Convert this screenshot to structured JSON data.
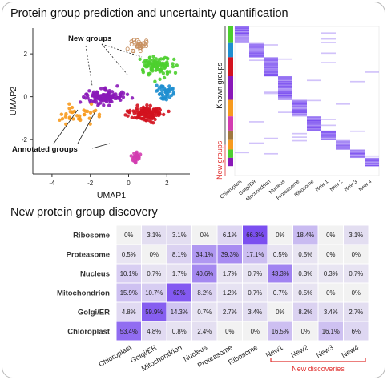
{
  "panel1": {
    "title": "Protein group prediction and uncertainty quantification"
  },
  "panel2": {
    "title": "New protein group discovery"
  },
  "colors": {
    "heat_low": "#ffffff",
    "heat_high": "#7b4ff0",
    "band_red": "#e0302f",
    "clusters": [
      "#4ccf2e",
      "#1f8fd0",
      "#d3121e",
      "#8a18b8",
      "#f79a1e",
      "#d33cb0",
      "#a07840",
      "#ff7a5a"
    ]
  },
  "chart_data": [
    {
      "type": "scatter",
      "xlabel": "UMAP1",
      "ylabel": "UMAP2",
      "xlim": [
        -5,
        3.2
      ],
      "ylim": [
        -3.6,
        3.2
      ],
      "x_ticks": [
        "-4",
        "-2",
        "0",
        "2"
      ],
      "y_ticks": [
        "-2",
        "0",
        "2"
      ],
      "annotations": [
        "New groups",
        "Annotated groups"
      ],
      "clusters": [
        {
          "color": "#4ccf2e",
          "center": [
            1.5,
            1.4
          ],
          "spread": [
            0.9,
            0.6
          ],
          "n": 90
        },
        {
          "color": "#1f8fd0",
          "center": [
            1.9,
            0.2
          ],
          "spread": [
            0.6,
            0.35
          ],
          "n": 45
        },
        {
          "color": "#d3121e",
          "center": [
            0.9,
            -0.8
          ],
          "spread": [
            1.1,
            0.45
          ],
          "n": 110
        },
        {
          "color": "#8a18b8",
          "center": [
            -1.2,
            0.0
          ],
          "spread": [
            1.4,
            0.45
          ],
          "n": 110
        },
        {
          "color": "#f79a1e",
          "center": [
            -2.6,
            -0.8
          ],
          "spread": [
            1.2,
            0.7
          ],
          "n": 35
        },
        {
          "color": "#d33cb0",
          "center": [
            0.4,
            -2.8
          ],
          "spread": [
            0.25,
            0.35
          ],
          "n": 30
        },
        {
          "color": "#c89060",
          "center": [
            0.5,
            2.4
          ],
          "spread": [
            0.6,
            0.4
          ],
          "n": 35,
          "hollow": true
        }
      ]
    },
    {
      "type": "heatmap",
      "x_labels": [
        "Chloroplast",
        "Golgi/ER",
        "Mitochondrion",
        "Nucleus",
        "Proteasome",
        "Ribosome",
        "New 1",
        "New 2",
        "New 3",
        "New 4"
      ],
      "row_groups": [
        {
          "label": "Known groups",
          "rows": 100
        },
        {
          "label": "New groups",
          "rows": 26
        }
      ],
      "row_colors": [
        "#4ccf2e",
        "#1f8fd0",
        "#d3121e",
        "#8a18b8",
        "#f79a1e",
        "#d33cb0",
        "#a07840",
        "#f79a1e",
        "#4ccf2e",
        "#8a18b8"
      ],
      "block_order": [
        0,
        1,
        2,
        3,
        4,
        5,
        6,
        7,
        8,
        9
      ]
    },
    {
      "type": "table",
      "rows": [
        "Ribosome",
        "Proteasome",
        "Nucleus",
        "Mitochondrion",
        "Golgi/ER",
        "Chloroplast"
      ],
      "cols": [
        "Chloroplast",
        "Golgi/ER",
        "Mitochondrion",
        "Nucleus",
        "Proteasome",
        "Ribosome",
        "New1",
        "New2",
        "New3",
        "New4"
      ],
      "values": [
        [
          0,
          3.1,
          3.1,
          0,
          6.1,
          66.3,
          0,
          18.4,
          0,
          3.1
        ],
        [
          0.5,
          0,
          8.1,
          34.1,
          39.3,
          17.1,
          0.5,
          0.5,
          0,
          0
        ],
        [
          10.1,
          0.7,
          1.7,
          40.6,
          1.7,
          0.7,
          43.3,
          0.3,
          0.3,
          0.7
        ],
        [
          15.9,
          10.7,
          62,
          8.2,
          1.2,
          0.7,
          0.7,
          0.5,
          0,
          0
        ],
        [
          4.8,
          59.9,
          14.3,
          0.7,
          2.7,
          3.4,
          0,
          8.2,
          3.4,
          2.7
        ],
        [
          53.4,
          4.8,
          0.8,
          2.4,
          0,
          0,
          16.5,
          0,
          16.1,
          6
        ]
      ],
      "labels": [
        [
          "0%",
          "3.1%",
          "3.1%",
          "0%",
          "6.1%",
          "66.3%",
          "0%",
          "18.4%",
          "0%",
          "3.1%"
        ],
        [
          "0.5%",
          "0%",
          "8.1%",
          "34.1%",
          "39.3%",
          "17.1%",
          "0.5%",
          "0.5%",
          "0%",
          "0%"
        ],
        [
          "10.1%",
          "0.7%",
          "1.7%",
          "40.6%",
          "1.7%",
          "0.7%",
          "43.3%",
          "0.3%",
          "0.3%",
          "0.7%"
        ],
        [
          "15.9%",
          "10.7%",
          "62%",
          "8.2%",
          "1.2%",
          "0.7%",
          "0.7%",
          "0.5%",
          "0%",
          "0%"
        ],
        [
          "4.8%",
          "59.9%",
          "14.3%",
          "0.7%",
          "2.7%",
          "3.4%",
          "0%",
          "8.2%",
          "3.4%",
          "2.7%"
        ],
        [
          "53.4%",
          "4.8%",
          "0.8%",
          "2.4%",
          "0%",
          "0%",
          "16.5%",
          "0%",
          "16.1%",
          "6%"
        ]
      ],
      "bracket_label": "New discoveries"
    }
  ]
}
